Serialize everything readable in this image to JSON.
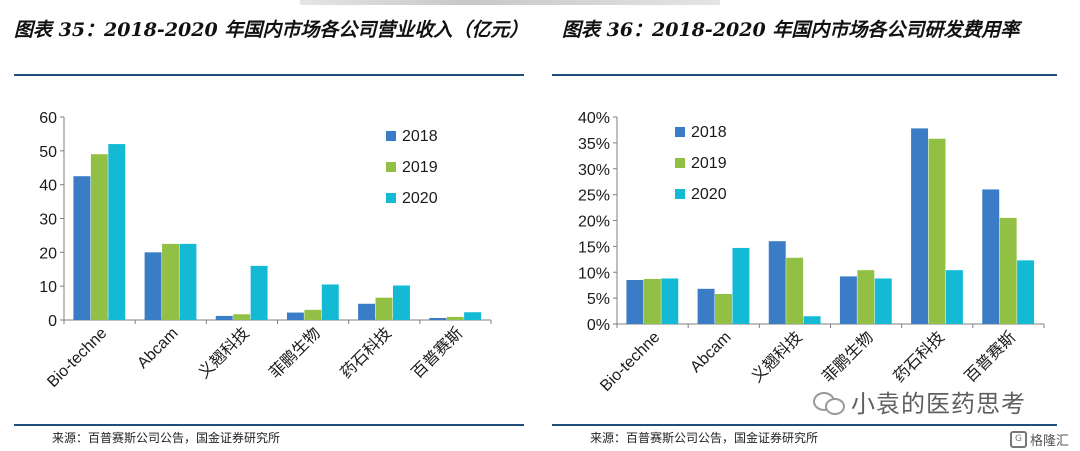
{
  "left_panel": {
    "title": "图表 35：2018-2020 年国内市场各公司营业收入（亿元）",
    "source": "来源：百普赛斯公司公告，国金证券研究所"
  },
  "right_panel": {
    "title": "图表 36：2018-2020 年国内市场各公司研发费用率",
    "source": "来源：百普赛斯公司公告，国金证券研究所"
  },
  "watermark": {
    "text": "小袁的医药思考",
    "icon": "wechat-icon"
  },
  "corner_logo": {
    "text": "格隆汇",
    "icon": "gelonghui-logo-icon"
  },
  "colors": {
    "2018": "#3a7cc6",
    "2019": "#92c045",
    "2020": "#14b9d4",
    "rule": "#1f4e79"
  },
  "chart_data": [
    {
      "type": "bar",
      "title": "图表 35：2018-2020 年国内市场各公司营业收入（亿元）",
      "categories": [
        "Bio-techne",
        "Abcam",
        "义翘科技",
        "菲鹏生物",
        "药石科技",
        "百普赛斯"
      ],
      "series": [
        {
          "name": "2018",
          "values": [
            42.5,
            20.0,
            1.2,
            2.2,
            4.8,
            0.6
          ]
        },
        {
          "name": "2019",
          "values": [
            49.0,
            22.5,
            1.7,
            3.0,
            6.6,
            0.9
          ]
        },
        {
          "name": "2020",
          "values": [
            52.0,
            22.5,
            16.0,
            10.5,
            10.2,
            2.3
          ]
        }
      ],
      "yticks": [
        "0",
        "10",
        "20",
        "30",
        "40",
        "50",
        "60"
      ],
      "ylim": [
        0,
        60
      ],
      "grid": false,
      "legend": "top-right"
    },
    {
      "type": "bar",
      "title": "图表 36：2018-2020 年国内市场各公司研发费用率",
      "categories": [
        "Bio-techne",
        "Abcam",
        "义翘科技",
        "菲鹏生物",
        "药石科技",
        "百普赛斯"
      ],
      "series": [
        {
          "name": "2018",
          "values": [
            8.5,
            6.8,
            16.0,
            9.2,
            37.8,
            26.0
          ]
        },
        {
          "name": "2019",
          "values": [
            8.7,
            5.8,
            12.8,
            10.4,
            35.8,
            20.5
          ]
        },
        {
          "name": "2020",
          "values": [
            8.8,
            14.7,
            1.5,
            8.8,
            10.4,
            12.3
          ]
        }
      ],
      "yticks": [
        "0%",
        "5%",
        "10%",
        "15%",
        "20%",
        "25%",
        "30%",
        "35%",
        "40%"
      ],
      "ylim": [
        0,
        40
      ],
      "grid": false,
      "legend": "top-left"
    }
  ]
}
